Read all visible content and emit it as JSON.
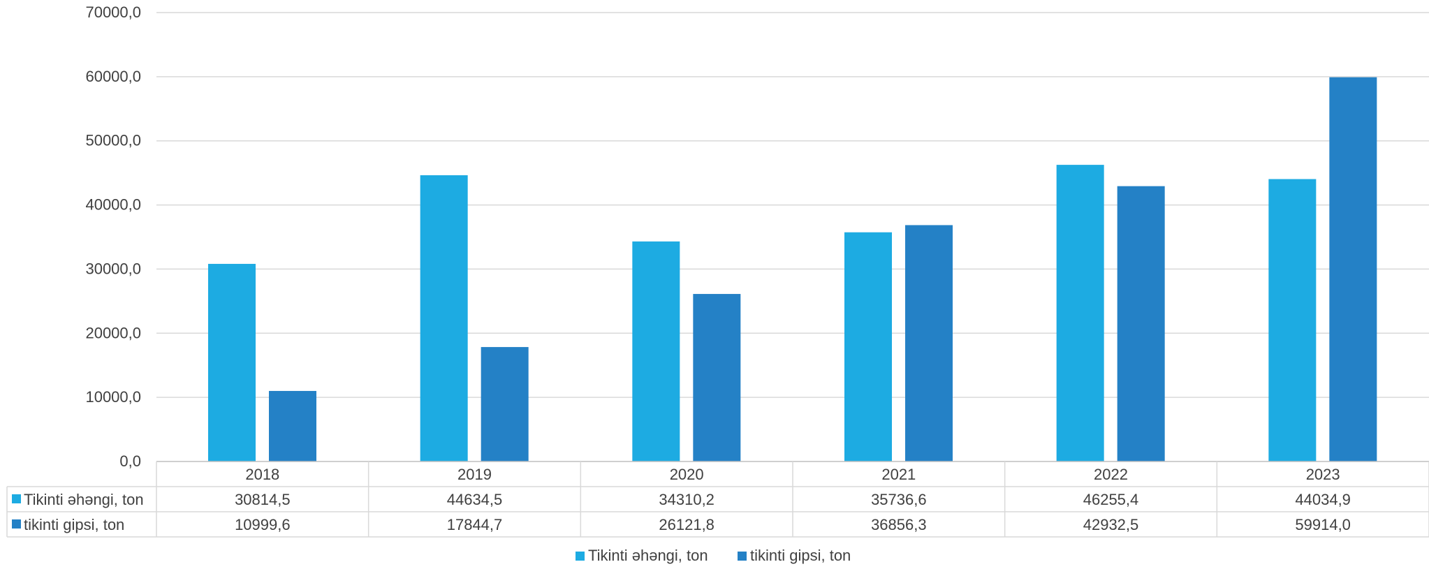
{
  "chart_data": {
    "type": "bar",
    "categories": [
      "2018",
      "2019",
      "2020",
      "2021",
      "2022",
      "2023"
    ],
    "series": [
      {
        "name": "Tikinti əhəngi, ton",
        "color": "#1DABE2",
        "values": [
          30814.5,
          44634.5,
          34310.2,
          35736.6,
          46255.4,
          44034.9
        ],
        "labels": [
          "30814,5",
          "44634,5",
          "34310,2",
          "35736,6",
          "46255,4",
          "44034,9"
        ]
      },
      {
        "name": "tikinti gipsi, ton",
        "color": "#2481C6",
        "values": [
          10999.6,
          17844.7,
          26121.8,
          36856.3,
          42932.5,
          59914.0
        ],
        "labels": [
          "10999,6",
          "17844,7",
          "26121,8",
          "36856,3",
          "42932,5",
          "59914,0"
        ]
      }
    ],
    "yticks": [
      "0,0",
      "10000,0",
      "20000,0",
      "30000,0",
      "40000,0",
      "50000,0",
      "60000,0",
      "70000,0"
    ],
    "ylim": [
      0,
      70000
    ],
    "grid": true,
    "data_table": true,
    "legend_position": "bottom"
  }
}
